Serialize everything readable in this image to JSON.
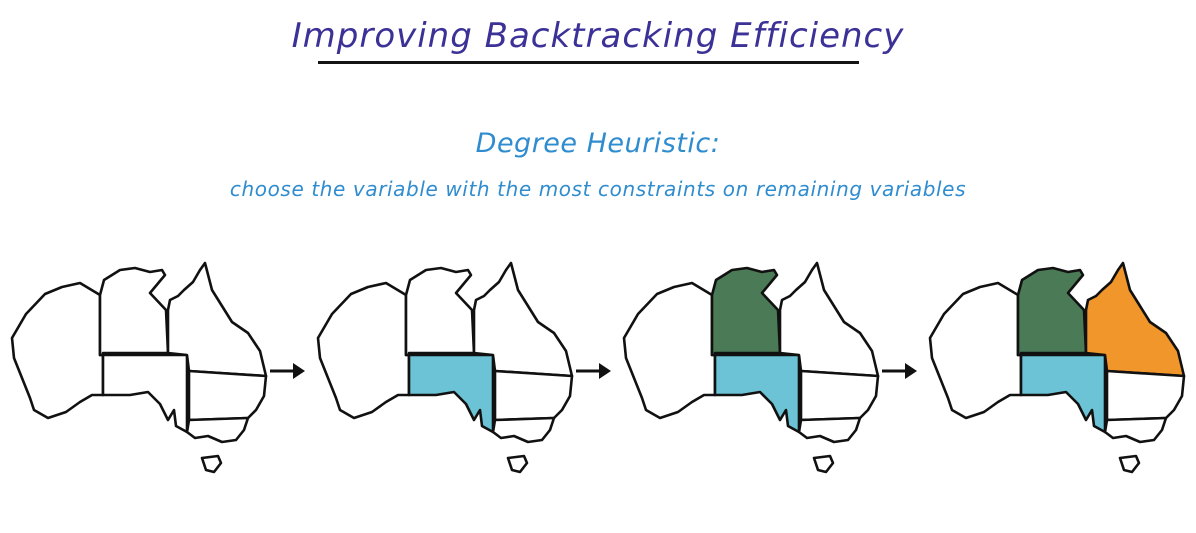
{
  "title": "Improving Backtracking Efficiency",
  "heuristic": {
    "name": "Degree Heuristic:",
    "description": "choose the variable with the most constraints on remaining variables"
  },
  "colors": {
    "title": "#3b3196",
    "heuristic_text": "#2f8ccf",
    "SA": "#6cc3d5",
    "NT": "#4b7a57",
    "Q": "#f0962a",
    "outline": "#111111"
  },
  "maps": [
    {
      "step": 1,
      "colored": {}
    },
    {
      "step": 2,
      "colored": {
        "SA": "#6cc3d5"
      }
    },
    {
      "step": 3,
      "colored": {
        "SA": "#6cc3d5",
        "NT": "#4b7a57"
      }
    },
    {
      "step": 4,
      "colored": {
        "SA": "#6cc3d5",
        "NT": "#4b7a57",
        "Q": "#f0962a"
      }
    }
  ]
}
